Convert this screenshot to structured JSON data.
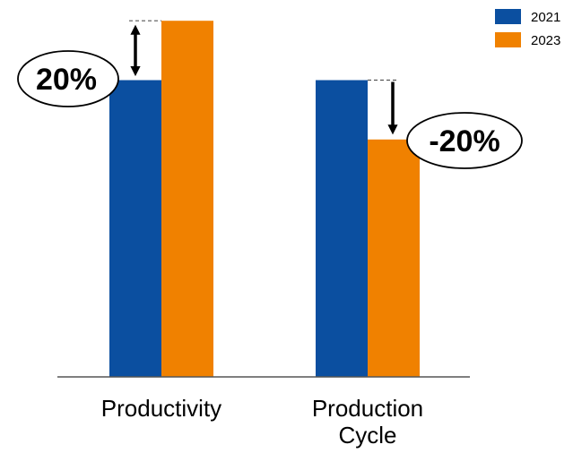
{
  "chart_data": {
    "type": "bar",
    "categories": [
      "Productivity",
      "Production\nCycle"
    ],
    "series": [
      {
        "name": "2021",
        "values": [
          100,
          100
        ],
        "color": "#0b4fa0"
      },
      {
        "name": "2023",
        "values": [
          120,
          80
        ],
        "color": "#f08100"
      }
    ],
    "ylim": [
      0,
      127
    ],
    "grid": false,
    "legend": "top-right",
    "annotations": [
      {
        "category": "Productivity",
        "text": "20%",
        "direction": "up"
      },
      {
        "category": "Production\nCycle",
        "text": "-20%",
        "direction": "down"
      }
    ]
  }
}
